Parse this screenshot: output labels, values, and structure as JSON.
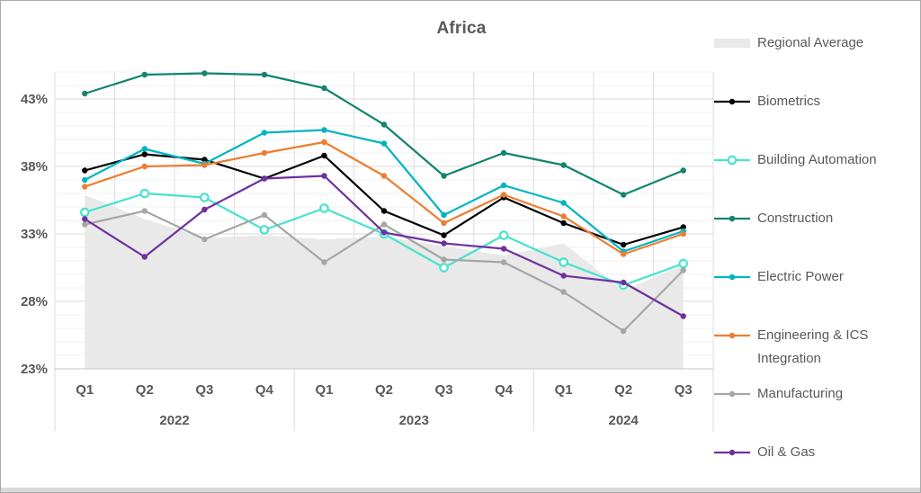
{
  "title": "Africa",
  "colors": {
    "title_text": "#595959",
    "axis_text": "#595959",
    "grid_minor": "#f0f0f0",
    "grid_major": "#dadada",
    "grid_vertical": "#dcdcdc",
    "axis_line": "#c6c6c6",
    "area_fill": "#e9e9e9",
    "canvas_border": "#ababab",
    "bottom_bar": "#d9d9d9"
  },
  "chart_data": {
    "type": "line",
    "title": "Africa",
    "xlabel": "",
    "ylabel": "",
    "grid": true,
    "legend_position": "right",
    "ylim": [
      23,
      45
    ],
    "y_tick_values": [
      23,
      28,
      33,
      38,
      43
    ],
    "y_tick_labels": [
      "23%",
      "28%",
      "33%",
      "38%",
      "43%"
    ],
    "x_quarter_labels": [
      "Q1",
      "Q2",
      "Q3",
      "Q4",
      "Q1",
      "Q2",
      "Q3",
      "Q4",
      "Q1",
      "Q2",
      "Q3"
    ],
    "x_year_groups": [
      {
        "label": "2022",
        "span": 4
      },
      {
        "label": "2023",
        "span": 4
      },
      {
        "label": "2024",
        "span": 3
      }
    ],
    "area_series": {
      "name": "Regional Average",
      "fill": "#e9e9e9",
      "values": [
        35.9,
        34.1,
        32.7,
        32.9,
        32.6,
        32.8,
        32.1,
        31.4,
        32.3,
        28.8,
        30.7
      ]
    },
    "series": [
      {
        "name": "Biometrics",
        "color": "#000000",
        "marker": "filled",
        "values": [
          37.7,
          38.9,
          38.5,
          37.1,
          38.8,
          34.7,
          32.9,
          35.7,
          33.8,
          32.2,
          33.5
        ]
      },
      {
        "name": "Building Automation",
        "color": "#45e3cd",
        "marker": "open",
        "values": [
          34.6,
          36.0,
          35.7,
          33.3,
          34.9,
          33.0,
          30.5,
          32.9,
          30.9,
          29.2,
          30.8
        ]
      },
      {
        "name": "Construction",
        "color": "#13846e",
        "marker": "filled",
        "values": [
          43.4,
          44.8,
          44.9,
          44.8,
          43.8,
          41.1,
          37.3,
          39.0,
          38.1,
          35.9,
          37.7
        ]
      },
      {
        "name": "Electric Power",
        "color": "#00b5c0",
        "marker": "filled",
        "values": [
          37.0,
          39.3,
          38.2,
          40.5,
          40.7,
          39.7,
          34.4,
          36.6,
          35.3,
          31.7,
          33.2
        ]
      },
      {
        "name": "Engineering & ICS Integration",
        "color": "#ed7d31",
        "marker": "filled",
        "values": [
          36.5,
          38.0,
          38.1,
          39.0,
          39.8,
          37.3,
          33.8,
          35.9,
          34.3,
          31.5,
          33.0
        ]
      },
      {
        "name": "Manufacturing",
        "color": "#a6a6a6",
        "marker": "filled",
        "values": [
          33.7,
          34.7,
          32.6,
          34.4,
          30.9,
          33.7,
          31.1,
          30.9,
          28.7,
          25.8,
          30.3
        ]
      },
      {
        "name": "Oil & Gas",
        "color": "#7030a0",
        "marker": "filled",
        "values": [
          34.1,
          31.3,
          34.8,
          37.1,
          37.3,
          33.1,
          32.3,
          31.9,
          29.9,
          29.4,
          26.9
        ]
      }
    ]
  }
}
